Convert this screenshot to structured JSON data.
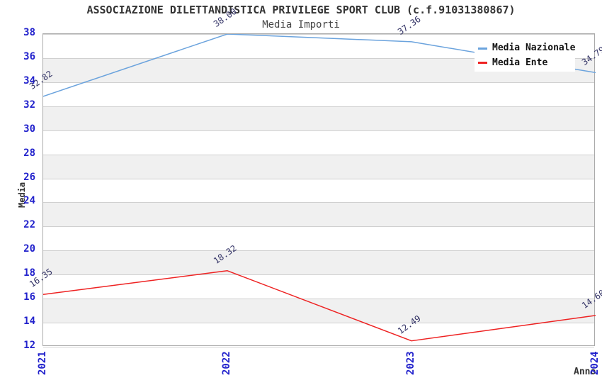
{
  "title": "ASSOCIAZIONE DILETTANDISTICA PRIVILEGE SPORT CLUB (c.f.91031380867)",
  "subtitle": "Media Importi",
  "colors": {
    "tick_label": "#2222cc",
    "value_label": "#333366",
    "grid_line": "#d0d0d0",
    "plot_border": "#aaaaaa",
    "band_fill": "#f0f0f0",
    "background": "#ffffff",
    "national_series": "#6ba3dd",
    "entity_series": "#ee2222"
  },
  "chart_data": {
    "type": "line",
    "title": "Media Importi",
    "x": [
      "2021",
      "2022",
      "2023",
      "2024"
    ],
    "xlabel": "Anno",
    "ylabel": "Media",
    "ylim": [
      12,
      38
    ],
    "ytick_step": 2,
    "yticks": [
      12,
      14,
      16,
      18,
      20,
      22,
      24,
      26,
      28,
      30,
      32,
      34,
      36,
      38
    ],
    "grid": "horizontal",
    "banded_background": true,
    "value_label_decimals": 2,
    "legend_position": "top-right",
    "series": [
      {
        "name": "Media Nazionale",
        "color": "#6ba3dd",
        "values": [
          32.82,
          38.0,
          37.36,
          34.79
        ]
      },
      {
        "name": "Media Ente",
        "color": "#ee2222",
        "values": [
          16.35,
          18.32,
          12.49,
          14.6
        ]
      }
    ]
  }
}
